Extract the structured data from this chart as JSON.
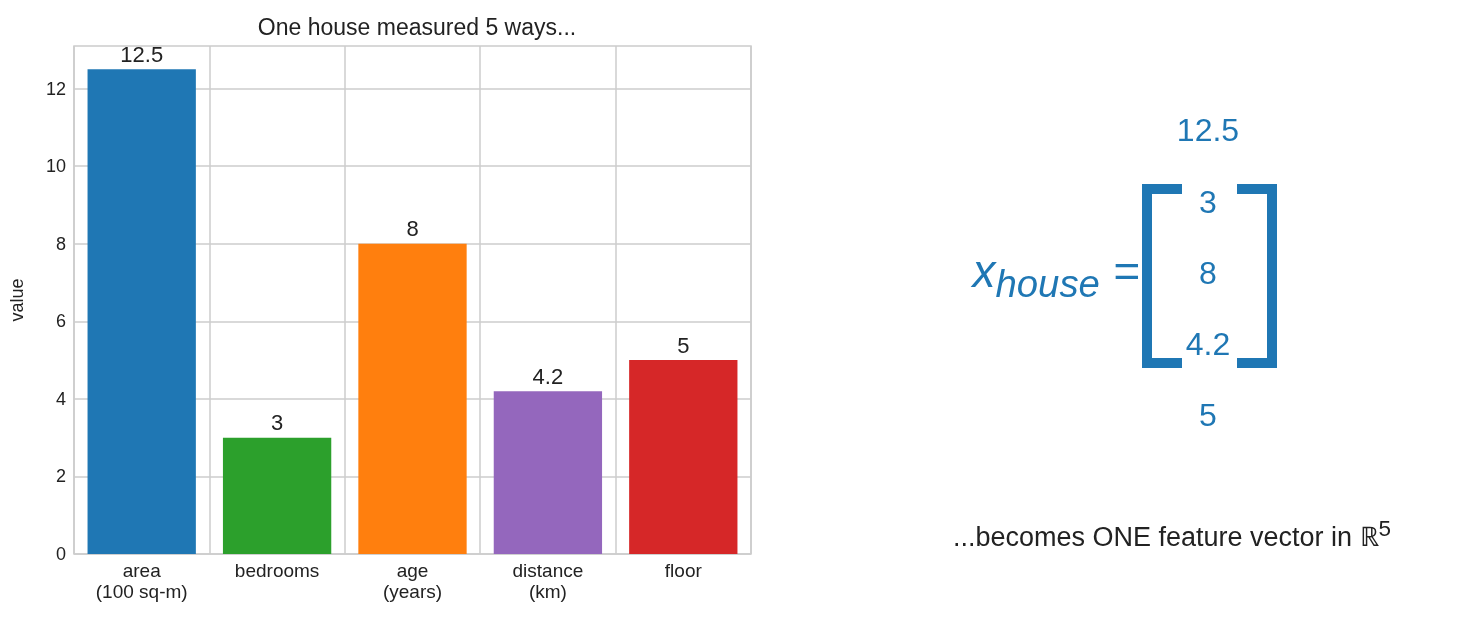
{
  "chart_data": [
    {
      "type": "bar",
      "title": "One house measured 5 ways...",
      "ylabel": "value",
      "categories": [
        "area\n(100 sq-m)",
        "bedrooms",
        "age\n(years)",
        "distance\n(km)",
        "floor"
      ],
      "values": [
        12.5,
        3,
        8,
        4.2,
        5
      ],
      "colors": [
        "#1f77b4",
        "#2ca02c",
        "#ff7f0e",
        "#9467bd",
        "#d62728"
      ],
      "ylim": [
        0,
        13.1
      ],
      "yticks": [
        0,
        2,
        4,
        6,
        8,
        10,
        12
      ],
      "grid": true,
      "data_labels": true
    },
    {
      "type": "other",
      "color": "#1f77b4",
      "annotations": [
        "x$_{house}$ =",
        "12.5",
        "3",
        "8",
        "4.2",
        "5",
        "...becomes ONE feature vector in ℝ$^{5}$"
      ]
    }
  ]
}
